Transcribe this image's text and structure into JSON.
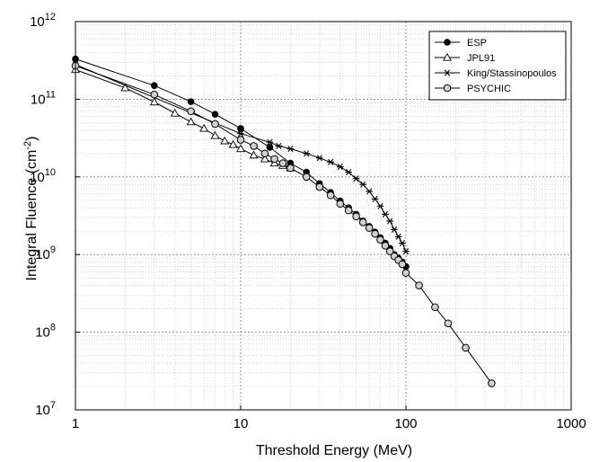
{
  "chart_data": {
    "type": "line",
    "xscale": "log",
    "yscale": "log",
    "xlim": [
      1,
      1000
    ],
    "ylim": [
      10000000,
      1000000000000
    ],
    "xlabel": "Threshold Energy (MeV)",
    "ylabel": "Integral Fluence (cm",
    "ylabel_sup": "-2",
    "ylabel_close": ")",
    "x_ticks": [
      {
        "value": 1,
        "label": "1"
      },
      {
        "value": 10,
        "label": "10"
      },
      {
        "value": 100,
        "label": "100"
      },
      {
        "value": 1000,
        "label": "1000"
      }
    ],
    "y_ticks": [
      {
        "value": 10000000,
        "base": "10",
        "exp": "7"
      },
      {
        "value": 100000000,
        "base": "10",
        "exp": "8"
      },
      {
        "value": 1000000000,
        "base": "10",
        "exp": "9"
      },
      {
        "value": 10000000000,
        "base": "10",
        "exp": "10"
      },
      {
        "value": 100000000000,
        "base": "10",
        "exp": "11"
      },
      {
        "value": 1000000000000,
        "base": "10",
        "exp": "12"
      }
    ],
    "grid": true,
    "legend_position": "top-right",
    "series": [
      {
        "name": "ESP",
        "marker": "filled-circle",
        "x": [
          1,
          3,
          5,
          7,
          10,
          15,
          20,
          25,
          30,
          35,
          40,
          45,
          50,
          55,
          60,
          65,
          70,
          75,
          80,
          85,
          90,
          95,
          100
        ],
        "y": [
          330000000000,
          150000000000,
          93000000000,
          64000000000,
          42000000000,
          24000000000,
          15000000000,
          11500000000,
          8200000000,
          6300000000,
          4900000000,
          4000000000,
          3300000000,
          2700000000,
          2300000000,
          1950000000,
          1650000000,
          1400000000,
          1200000000,
          1000000000,
          900000000,
          800000000,
          700000000
        ]
      },
      {
        "name": "JPL91",
        "marker": "open-triangle",
        "x": [
          1,
          2,
          3,
          4,
          5,
          6,
          7,
          8,
          9,
          10,
          12,
          14,
          16,
          18,
          20
        ],
        "y": [
          240000000000,
          140000000000,
          92000000000,
          66000000000,
          51000000000,
          42000000000,
          34000000000,
          29000000000,
          26000000000,
          23000000000,
          19000000000,
          17000000000,
          15000000000,
          14000000000,
          13000000000
        ]
      },
      {
        "name": "King/Stassinopoulos",
        "marker": "star",
        "x": [
          1,
          10,
          15,
          17,
          20,
          25,
          30,
          35,
          40,
          45,
          50,
          55,
          60,
          65,
          70,
          75,
          80,
          85,
          90,
          95,
          100
        ],
        "y": [
          280000000000,
          36000000000,
          28000000000,
          25000000000,
          23000000000,
          20000000000,
          17500000000,
          15500000000,
          13500000000,
          11500000000,
          9500000000,
          8000000000,
          6500000000,
          5200000000,
          4200000000,
          3300000000,
          2700000000,
          2100000000,
          1700000000,
          1400000000,
          1100000000
        ]
      },
      {
        "name": "PSYCHIC",
        "marker": "open-circle",
        "x": [
          1,
          3,
          5,
          7,
          10,
          12,
          14,
          16,
          18,
          20,
          25,
          30,
          35,
          40,
          45,
          50,
          55,
          60,
          65,
          70,
          75,
          80,
          85,
          90,
          95,
          100,
          120,
          150,
          180,
          230,
          330
        ],
        "y": [
          270000000000,
          115000000000,
          70000000000,
          48000000000,
          30000000000,
          25000000000,
          20000000000,
          17000000000,
          15000000000,
          13000000000,
          10000000000,
          7400000000,
          5800000000,
          4500000000,
          3700000000,
          3100000000,
          2600000000,
          2200000000,
          1850000000,
          1550000000,
          1300000000,
          1100000000,
          950000000,
          850000000,
          750000000,
          580000000,
          400000000,
          210000000,
          130000000,
          63000000,
          22000000
        ]
      }
    ]
  }
}
